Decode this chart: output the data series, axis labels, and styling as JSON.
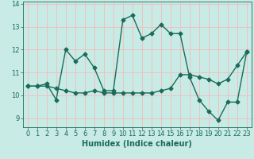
{
  "xlabel": "Humidex (Indice chaleur)",
  "ylabel": "",
  "background_color": "#c8ebe6",
  "line_color": "#1a6b5a",
  "grid_color": "#f0c0c0",
  "series1_x": [
    0,
    1,
    2,
    3,
    4,
    5,
    6,
    7,
    8,
    9,
    10,
    11,
    12,
    13,
    14,
    15,
    16,
    17,
    18,
    19,
    20,
    21,
    22,
    23
  ],
  "series1_y": [
    10.4,
    10.4,
    10.5,
    9.8,
    12.0,
    11.5,
    11.8,
    11.2,
    10.2,
    10.2,
    13.3,
    13.5,
    12.5,
    12.7,
    13.1,
    12.7,
    12.7,
    10.8,
    9.8,
    9.3,
    8.9,
    9.7,
    9.7,
    11.9
  ],
  "series2_x": [
    0,
    1,
    2,
    3,
    4,
    5,
    6,
    7,
    8,
    9,
    10,
    11,
    12,
    13,
    14,
    15,
    16,
    17,
    18,
    19,
    20,
    21,
    22,
    23
  ],
  "series2_y": [
    10.4,
    10.4,
    10.4,
    10.3,
    10.2,
    10.1,
    10.1,
    10.2,
    10.1,
    10.1,
    10.1,
    10.1,
    10.1,
    10.1,
    10.2,
    10.3,
    10.9,
    10.9,
    10.8,
    10.7,
    10.5,
    10.7,
    11.3,
    11.9
  ],
  "xlim": [
    -0.5,
    23.5
  ],
  "ylim": [
    8.6,
    14.1
  ],
  "yticks": [
    9,
    10,
    11,
    12,
    13,
    14
  ],
  "xticks": [
    0,
    1,
    2,
    3,
    4,
    5,
    6,
    7,
    8,
    9,
    10,
    11,
    12,
    13,
    14,
    15,
    16,
    17,
    18,
    19,
    20,
    21,
    22,
    23
  ],
  "marker": "D",
  "markersize": 2.5,
  "linewidth": 1.0,
  "xlabel_fontsize": 7,
  "tick_fontsize": 6
}
